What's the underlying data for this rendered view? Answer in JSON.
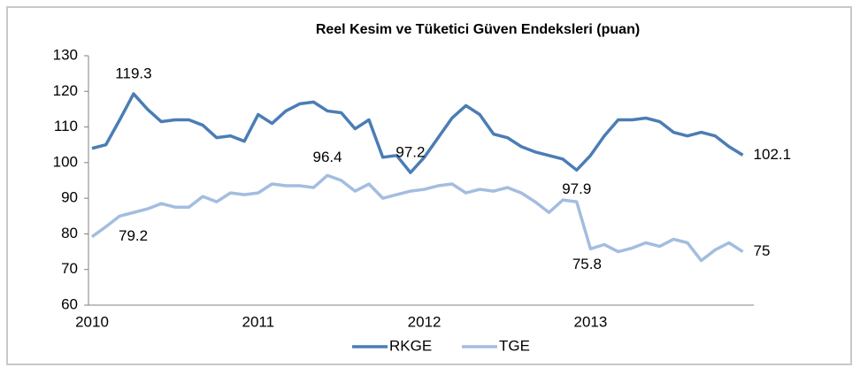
{
  "chart_data": {
    "type": "line",
    "title": "Reel Kesim ve Tüketici Güven Endeksleri (puan)",
    "categories": [
      "2010",
      null,
      null,
      null,
      null,
      null,
      null,
      null,
      null,
      null,
      null,
      null,
      "2011",
      null,
      null,
      null,
      null,
      null,
      null,
      null,
      null,
      null,
      null,
      null,
      "2012",
      null,
      null,
      null,
      null,
      null,
      null,
      null,
      null,
      null,
      null,
      null,
      "2013",
      null,
      null,
      null,
      null,
      null,
      null,
      null,
      null,
      null,
      null,
      null
    ],
    "series": [
      {
        "name": "RKGE",
        "color": "#4a7db5",
        "labeled_points": [
          3,
          23,
          35,
          47
        ],
        "values": [
          104,
          105,
          112,
          119.3,
          115,
          111.5,
          112,
          112,
          110.5,
          107,
          107.5,
          106,
          113.5,
          111,
          114.5,
          116.5,
          117,
          114.5,
          114,
          109.5,
          112,
          101.5,
          102,
          97.2,
          101.5,
          107,
          112.5,
          116,
          113.5,
          108,
          107,
          104.5,
          103,
          102,
          101,
          97.9,
          102,
          107.5,
          112,
          112,
          112.5,
          111.5,
          108.5,
          107.5,
          108.5,
          107.5,
          104.5,
          102.1
        ]
      },
      {
        "name": "TGE",
        "color": "#a3bde0",
        "labeled_points": [
          0,
          17,
          36,
          47
        ],
        "values": [
          79.2,
          82,
          85,
          86,
          87,
          88.5,
          87.5,
          87.5,
          90.5,
          89,
          91.5,
          91,
          91.5,
          94,
          93.5,
          93.5,
          93,
          96.4,
          95,
          92,
          94,
          90,
          91,
          92,
          92.5,
          93.5,
          94,
          91.5,
          92.5,
          92,
          93,
          91.5,
          89,
          86,
          89.5,
          89,
          75.8,
          77,
          75,
          76,
          77.5,
          76.5,
          78.5,
          77.5,
          72.5,
          75.5,
          77.5,
          75
        ]
      }
    ],
    "ylim": [
      60,
      130
    ],
    "yticks": [
      60,
      70,
      80,
      90,
      100,
      110,
      120,
      130
    ],
    "grid": false,
    "legend": "bottom"
  }
}
